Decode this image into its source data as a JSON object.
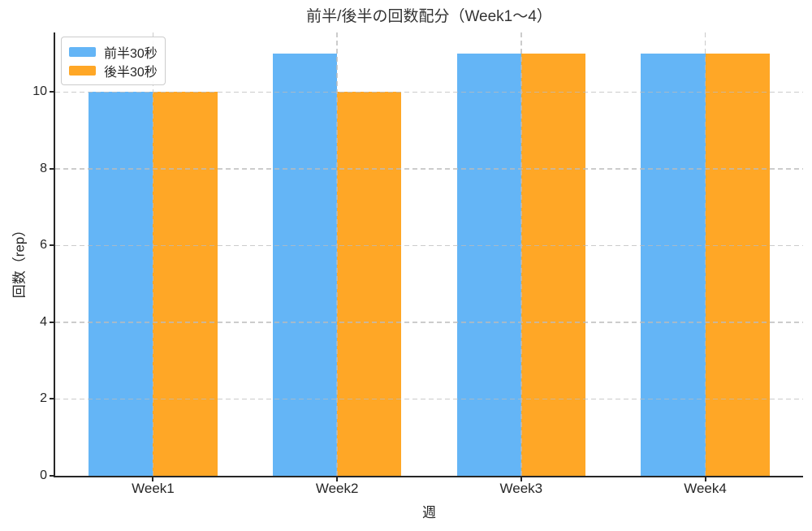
{
  "chart_data": {
    "type": "bar",
    "title": "前半/後半の回数配分（Week1〜4）",
    "xlabel": "週",
    "ylabel": "回数（rep）",
    "categories": [
      "Week1",
      "Week2",
      "Week3",
      "Week4"
    ],
    "series": [
      {
        "name": "前半30秒",
        "color": "#64B5F6",
        "values": [
          10,
          11,
          11,
          11
        ]
      },
      {
        "name": "後半30秒",
        "color": "#FFA726",
        "values": [
          10,
          10,
          11,
          11
        ]
      }
    ],
    "ylim": [
      0,
      11.55
    ],
    "yticks": [
      0,
      2,
      4,
      6,
      8,
      10
    ],
    "bar_width": 0.35,
    "x_margin": 0.5315,
    "grid": "both-axes-dashed-over-bars",
    "legend_position": "upper-left",
    "colors": {
      "spine": "#262626",
      "grid": "#bbbbbb",
      "text": "#262626",
      "title": "#333333",
      "background": "#ffffff"
    }
  }
}
